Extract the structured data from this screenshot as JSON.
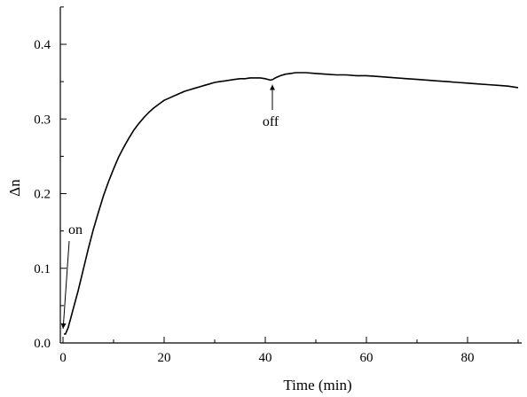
{
  "chart_data": {
    "type": "line",
    "title": "",
    "xlabel": "Time (min)",
    "ylabel": "Δn",
    "xlim": [
      0,
      90
    ],
    "ylim": [
      0.0,
      0.45
    ],
    "x_ticks": [
      0,
      20,
      40,
      60,
      80
    ],
    "x_tick_labels": [
      "0",
      "20",
      "40",
      "60",
      "80"
    ],
    "y_ticks": [
      0.0,
      0.1,
      0.2,
      0.3,
      0.4
    ],
    "y_tick_labels": [
      "0.0",
      "0.1",
      "0.2",
      "0.3",
      "0.4"
    ],
    "grid": false,
    "legend": "none",
    "line_color": "#000000",
    "series": [
      {
        "x": [
          0.2,
          0.5,
          1,
          1.5,
          2,
          3,
          4,
          5,
          6,
          7,
          8,
          9,
          10,
          11,
          12,
          13,
          14,
          15,
          16,
          17,
          18,
          19,
          20,
          21,
          22,
          23,
          24,
          25,
          26,
          27,
          28,
          29,
          30,
          31,
          32,
          33,
          34,
          35,
          36,
          37,
          38,
          39,
          40,
          40.5,
          41,
          41.5,
          42,
          43,
          44,
          45,
          46,
          48,
          50,
          52,
          54,
          56,
          58,
          60,
          62,
          64,
          66,
          68,
          70,
          72,
          74,
          76,
          78,
          80,
          82,
          84,
          86,
          88,
          90
        ],
        "y": [
          0.012,
          0.012,
          0.02,
          0.032,
          0.045,
          0.07,
          0.098,
          0.126,
          0.152,
          0.175,
          0.197,
          0.216,
          0.233,
          0.249,
          0.262,
          0.274,
          0.285,
          0.294,
          0.302,
          0.309,
          0.315,
          0.32,
          0.325,
          0.328,
          0.331,
          0.334,
          0.337,
          0.339,
          0.341,
          0.343,
          0.345,
          0.347,
          0.349,
          0.35,
          0.351,
          0.352,
          0.353,
          0.354,
          0.354,
          0.355,
          0.355,
          0.355,
          0.354,
          0.353,
          0.352,
          0.353,
          0.355,
          0.358,
          0.36,
          0.361,
          0.362,
          0.362,
          0.361,
          0.36,
          0.359,
          0.359,
          0.358,
          0.358,
          0.357,
          0.356,
          0.355,
          0.354,
          0.353,
          0.352,
          0.351,
          0.35,
          0.349,
          0.348,
          0.347,
          0.346,
          0.345,
          0.344,
          0.342
        ]
      }
    ],
    "annotations": [
      {
        "text": "on",
        "x": 0.2,
        "y": 0.012
      },
      {
        "text": "off",
        "x": 41.5,
        "y": 0.353
      }
    ]
  }
}
